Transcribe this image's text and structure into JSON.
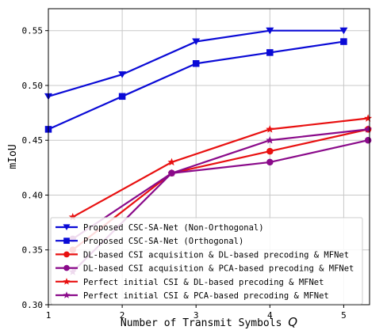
{
  "chart_data": {
    "type": "line",
    "xlabel": "Number of Transmit Symbols",
    "xlabel_symbol": "Q",
    "ylabel": "mIoU",
    "xlim": [
      1,
      5.35
    ],
    "ylim": [
      0.3,
      0.57
    ],
    "xticks": [
      1,
      2,
      3,
      4,
      5
    ],
    "yticks": [
      0.3,
      0.35,
      0.4,
      0.45,
      0.5,
      0.55
    ],
    "xtick_labels": [
      "1",
      "2",
      "3",
      "4",
      "5"
    ],
    "ytick_labels": [
      "0.30",
      "0.35",
      "0.40",
      "0.45",
      "0.50",
      "0.55"
    ],
    "grid": true,
    "legend_position": "bottom-left",
    "series": [
      {
        "name": "Proposed CSC-SA-Net (Non-Orthogonal)",
        "color": "#0a0ad6",
        "marker": "triangle-down",
        "x": [
          1,
          2,
          3,
          4,
          5
        ],
        "y": [
          0.49,
          0.51,
          0.54,
          0.55,
          0.55
        ]
      },
      {
        "name": "Proposed CSC-SA-Net (Orthogonal)",
        "color": "#0a0ad6",
        "marker": "square",
        "x": [
          1,
          2,
          3,
          4,
          5
        ],
        "y": [
          0.46,
          0.49,
          0.52,
          0.53,
          0.54
        ]
      },
      {
        "name": "DL-based CSI acquisition & DL-based precoding & MFNet",
        "color": "#e81010",
        "marker": "circle",
        "x": [
          1.33,
          2.67,
          4,
          5.33
        ],
        "y": [
          0.35,
          0.42,
          0.44,
          0.46
        ]
      },
      {
        "name": "DL-based CSI acquisition & PCA-based precoding & MFNet",
        "color": "#8a0a8a",
        "marker": "circle",
        "x": [
          1.33,
          2.67,
          4,
          5.33
        ],
        "y": [
          0.36,
          0.42,
          0.43,
          0.45
        ]
      },
      {
        "name": "Perfect initial CSI & DL-based precoding & MFNet",
        "color": "#e81010",
        "marker": "star",
        "x": [
          1.33,
          2.67,
          4,
          5.33
        ],
        "y": [
          0.38,
          0.43,
          0.46,
          0.47
        ]
      },
      {
        "name": "Perfect initial CSI & PCA-based precoding & MFNet",
        "color": "#8a0a8a",
        "marker": "star",
        "x": [
          1.33,
          2.67,
          4,
          5.33
        ],
        "y": [
          0.33,
          0.42,
          0.45,
          0.46
        ]
      }
    ]
  }
}
